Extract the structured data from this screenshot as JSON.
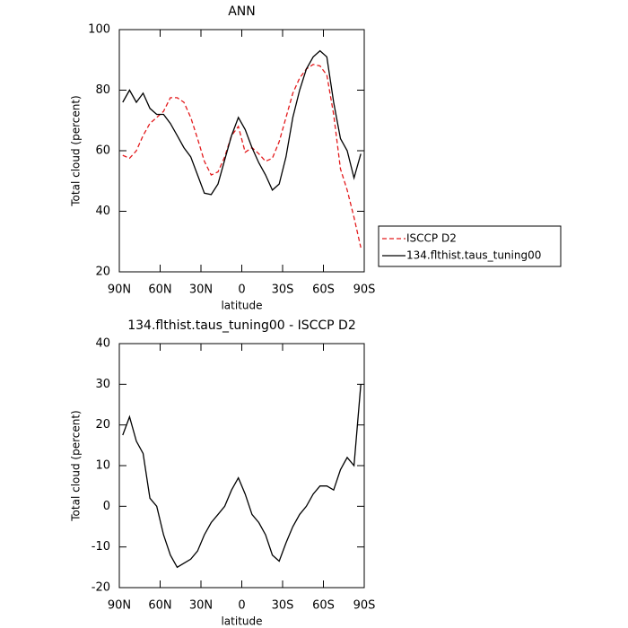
{
  "chart_data": [
    {
      "type": "line",
      "title": "ANN",
      "xlabel": "latitude",
      "ylabel": "Total cloud (percent)",
      "x": [
        87.5,
        82.5,
        77.5,
        72.5,
        67.5,
        62.5,
        57.5,
        52.5,
        47.5,
        42.5,
        37.5,
        32.5,
        27.5,
        22.5,
        17.5,
        12.5,
        7.5,
        2.5,
        -2.5,
        -7.5,
        -12.5,
        -17.5,
        -22.5,
        -27.5,
        -32.5,
        -37.5,
        -42.5,
        -47.5,
        -52.5,
        -57.5,
        -62.5,
        -67.5,
        -72.5,
        -77.5,
        -82.5,
        -87.5
      ],
      "series": [
        {
          "name": "ISCCP D2",
          "color": "#e31a1c",
          "dashed": true,
          "values": [
            58.5,
            57.5,
            60,
            65,
            69,
            71,
            73,
            77.5,
            77.5,
            76,
            71,
            64,
            56.5,
            52,
            53,
            58,
            65,
            68,
            59.5,
            61,
            59,
            56.5,
            57.5,
            63,
            71,
            79,
            84,
            87,
            88.5,
            88,
            85,
            72,
            54,
            47,
            38,
            28
          ]
        },
        {
          "name": "134.flthist.taus_tuning00",
          "color": "#000000",
          "dashed": false,
          "values": [
            76,
            80,
            76,
            79,
            74,
            72,
            72,
            69,
            65,
            61,
            58,
            52,
            46,
            45.5,
            49,
            57,
            65,
            71,
            67,
            61,
            56,
            52,
            47,
            49,
            58,
            71,
            80,
            87,
            91,
            93,
            91,
            76,
            64,
            60,
            51,
            59
          ]
        }
      ],
      "xlim": [
        90,
        -90
      ],
      "xticks": [
        {
          "value": 90,
          "label": "90N"
        },
        {
          "value": 60,
          "label": "60N"
        },
        {
          "value": 30,
          "label": "30N"
        },
        0,
        {
          "value": -30,
          "label": "30S"
        },
        {
          "value": -60,
          "label": "60S"
        },
        {
          "value": -90,
          "label": "90S"
        }
      ],
      "ylim": [
        20,
        100
      ],
      "yticks": [
        20,
        40,
        60,
        80,
        100
      ],
      "legend": "outside-right"
    },
    {
      "type": "line",
      "title": "134.flthist.taus_tuning00 - ISCCP D2",
      "xlabel": "latitude",
      "ylabel": "Total cloud (percent)",
      "x": [
        87.5,
        82.5,
        77.5,
        72.5,
        67.5,
        62.5,
        57.5,
        52.5,
        47.5,
        42.5,
        37.5,
        32.5,
        27.5,
        22.5,
        17.5,
        12.5,
        7.5,
        2.5,
        -2.5,
        -7.5,
        -12.5,
        -17.5,
        -22.5,
        -27.5,
        -32.5,
        -37.5,
        -42.5,
        -47.5,
        -52.5,
        -57.5,
        -62.5,
        -67.5,
        -72.5,
        -77.5,
        -82.5,
        -87.5
      ],
      "series": [
        {
          "color": "#000000",
          "dashed": false,
          "values": [
            17.5,
            22,
            16,
            13,
            2,
            0,
            -7,
            -12,
            -15,
            -14,
            -13,
            -11,
            -7,
            -4,
            -2,
            0,
            4,
            7,
            3,
            -2,
            -4,
            -7,
            -12,
            -13.5,
            -9,
            -5,
            -2,
            0,
            3,
            5,
            5,
            4,
            9,
            12,
            10,
            30
          ]
        }
      ],
      "xlim": [
        90,
        -90
      ],
      "xticks": [
        {
          "value": 90,
          "label": "90N"
        },
        {
          "value": 60,
          "label": "60N"
        },
        {
          "value": 30,
          "label": "30N"
        },
        0,
        {
          "value": -30,
          "label": "30S"
        },
        {
          "value": -60,
          "label": "60S"
        },
        {
          "value": -90,
          "label": "90S"
        }
      ],
      "ylim": [
        -20,
        40
      ],
      "yticks": [
        -20,
        -10,
        0,
        10,
        20,
        30,
        40
      ]
    }
  ]
}
